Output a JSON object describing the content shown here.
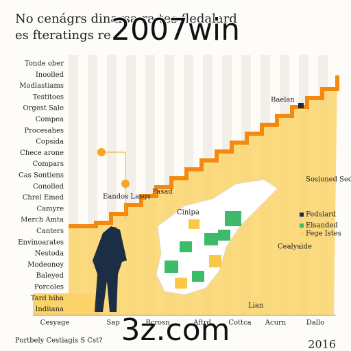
{
  "header": {
    "title_lines": [
      "No cenágrs dinarsa ra tes fledalard",
      "es fteratings re"
    ]
  },
  "watermarks": [
    "2007win",
    "3z.com"
  ],
  "row_labels": [
    "Tonde ober",
    "Inoolled",
    "Modlastiams",
    "Testitoes",
    "Orgest Sale",
    "Compea",
    "Procesahes",
    "Copsida",
    "Chece arone",
    "Compars",
    "Cas Sontiens",
    "Conolled",
    "Chrel Emed",
    "Camyre",
    "Merch Amta",
    "Canters",
    "Envinoarates",
    "Nestoda",
    "Modeonoy",
    "Baleyed",
    "Porcoles",
    "Tard hiba",
    "Indiiana"
  ],
  "column_labels": [
    "Cesyage",
    "Sap",
    "Bcrosn",
    "Aftrd",
    "Cottca",
    "Acurn",
    "Dallo"
  ],
  "annotations": {
    "top_right": "Baelan",
    "map_right": "Cealyaide",
    "map_top": "Cinipa",
    "mid": "Pasad",
    "callout": "Eandos Lasgs",
    "map_bottom": "Lian",
    "side": "Sosioned Sedaorais"
  },
  "legend": [
    "Fedsiard",
    "Elsanded",
    "Fege Istes"
  ],
  "footer": {
    "left": "Portbely Cestiagis S Cst?",
    "right": "2016"
  }
}
